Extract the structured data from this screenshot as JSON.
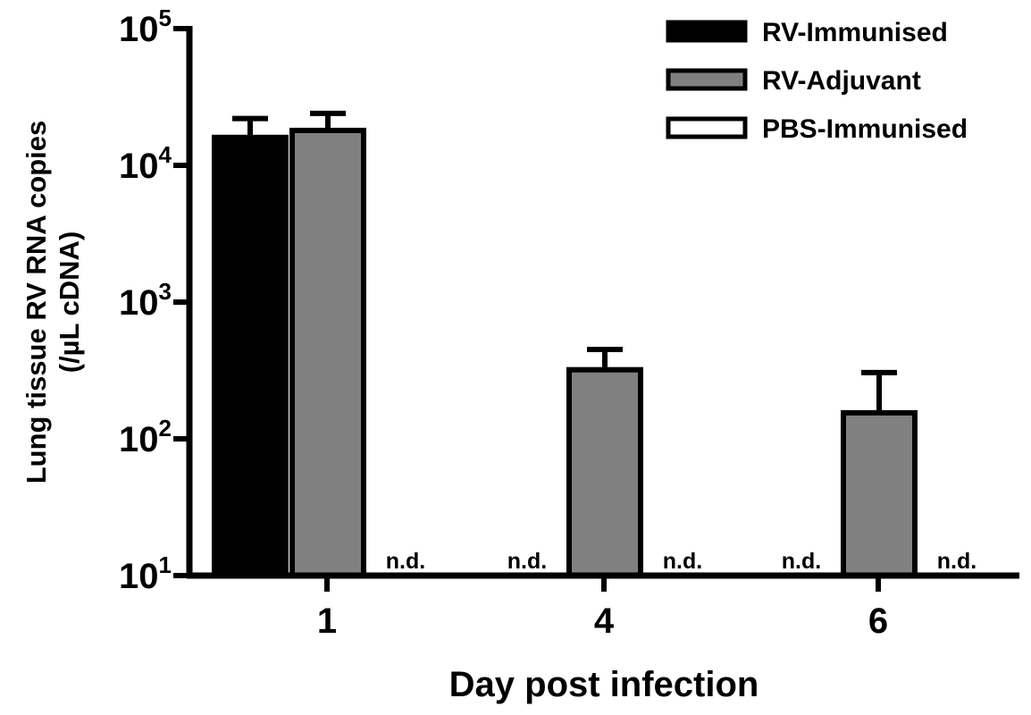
{
  "chart_data": {
    "type": "bar",
    "title": "",
    "xlabel": "Day post infection",
    "ylabel_line1": "Lung tissue RV RNA copies",
    "ylabel_line2": "(/µL cDNA)",
    "yscale": "log",
    "ylim": [
      10,
      100000
    ],
    "yticks": [
      {
        "base": "10",
        "exp": "1",
        "value": 10
      },
      {
        "base": "10",
        "exp": "2",
        "value": 100
      },
      {
        "base": "10",
        "exp": "3",
        "value": 1000
      },
      {
        "base": "10",
        "exp": "4",
        "value": 10000
      },
      {
        "base": "10",
        "exp": "5",
        "value": 100000
      }
    ],
    "categories": [
      "1",
      "4",
      "6"
    ],
    "legend_position": "top-right",
    "not_detected_label": "n.d.",
    "series": [
      {
        "name": "RV-Immunised",
        "color": "#000000",
        "values": [
          16000,
          null,
          null
        ],
        "errors": [
          22000,
          null,
          null
        ]
      },
      {
        "name": "RV-Adjuvant",
        "color": "#808080",
        "values": [
          18000,
          320,
          155
        ],
        "errors": [
          24000,
          450,
          305
        ]
      },
      {
        "name": "PBS-Immunised",
        "color": "#ffffff",
        "values": [
          null,
          null,
          null
        ],
        "errors": [
          null,
          null,
          null
        ]
      }
    ],
    "grid": false
  }
}
